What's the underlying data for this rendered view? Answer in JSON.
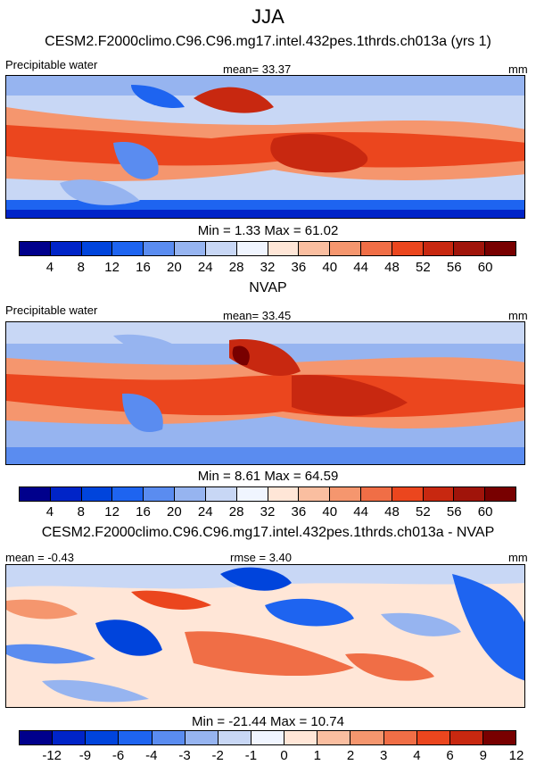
{
  "title": "JJA",
  "colors": {
    "seq": [
      "#00008c",
      "#0024c8",
      "#0044dc",
      "#1e64f0",
      "#5a8cf0",
      "#96b4f0",
      "#c8d7f5",
      "#f0f5ff",
      "#ffe6d7",
      "#fabea0",
      "#f5966e",
      "#f06e46",
      "#eb461e",
      "#c82810",
      "#a0140a",
      "#780000"
    ],
    "diff": [
      "#00008c",
      "#0024c8",
      "#0044dc",
      "#1e64f0",
      "#5a8cf0",
      "#96b4f0",
      "#c8d7f5",
      "#f0f5ff",
      "#ffe6d7",
      "#fabea0",
      "#f5966e",
      "#f06e46",
      "#eb461e",
      "#c82810",
      "#780000"
    ]
  },
  "panels": [
    {
      "title": "CESM2.F2000climo.C96.C96.mg17.intel.432pes.1thrds.ch013a (yrs 1)",
      "left": "Precipitable water",
      "center": "mean=  33.37",
      "right": "mm",
      "stats": "Min =   1.33 Max =  61.02",
      "colorbar_labels": [
        "4",
        "8",
        "12",
        "16",
        "20",
        "24",
        "28",
        "32",
        "36",
        "40",
        "44",
        "48",
        "52",
        "56",
        "60"
      ]
    },
    {
      "title": "NVAP",
      "left": "Precipitable water",
      "center": "mean=  33.45",
      "right": "mm",
      "stats": "Min =   8.61 Max =  64.59",
      "colorbar_labels": [
        "4",
        "8",
        "12",
        "16",
        "20",
        "24",
        "28",
        "32",
        "36",
        "40",
        "44",
        "48",
        "52",
        "56",
        "60"
      ]
    },
    {
      "title": "CESM2.F2000climo.C96.C96.mg17.intel.432pes.1thrds.ch013a - NVAP",
      "left": "mean =  -0.43",
      "center": "rmse =  3.40",
      "right": "mm",
      "stats": "Min = -21.44 Max =  10.74",
      "colorbar_labels": [
        "-12",
        "-9",
        "-6",
        "-4",
        "-3",
        "-2",
        "-1",
        "0",
        "1",
        "2",
        "3",
        "4",
        "6",
        "9",
        "12"
      ]
    }
  ]
}
